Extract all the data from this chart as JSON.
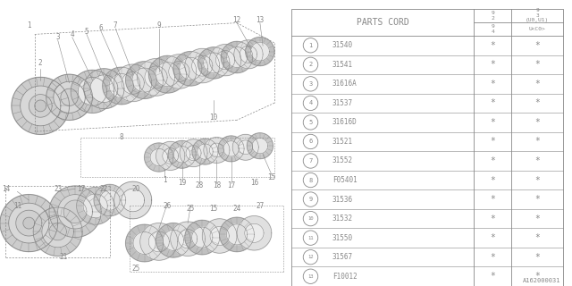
{
  "bg_color": "#ffffff",
  "table_header": "PARTS CORD",
  "parts": [
    {
      "num": "1",
      "code": "31540"
    },
    {
      "num": "2",
      "code": "31541"
    },
    {
      "num": "3",
      "code": "31616A"
    },
    {
      "num": "4",
      "code": "31537"
    },
    {
      "num": "5",
      "code": "31616D"
    },
    {
      "num": "6",
      "code": "31521"
    },
    {
      "num": "7",
      "code": "31552"
    },
    {
      "num": "8",
      "code": "F05401"
    },
    {
      "num": "9",
      "code": "31536"
    },
    {
      "num": "10",
      "code": "31532"
    },
    {
      "num": "11",
      "code": "31550"
    },
    {
      "num": "12",
      "code": "31567"
    },
    {
      "num": "13",
      "code": "F10012"
    }
  ],
  "diagram_id": "A162000031",
  "line_color": "#888888",
  "text_color": "#888888",
  "diag_color": "#888888"
}
